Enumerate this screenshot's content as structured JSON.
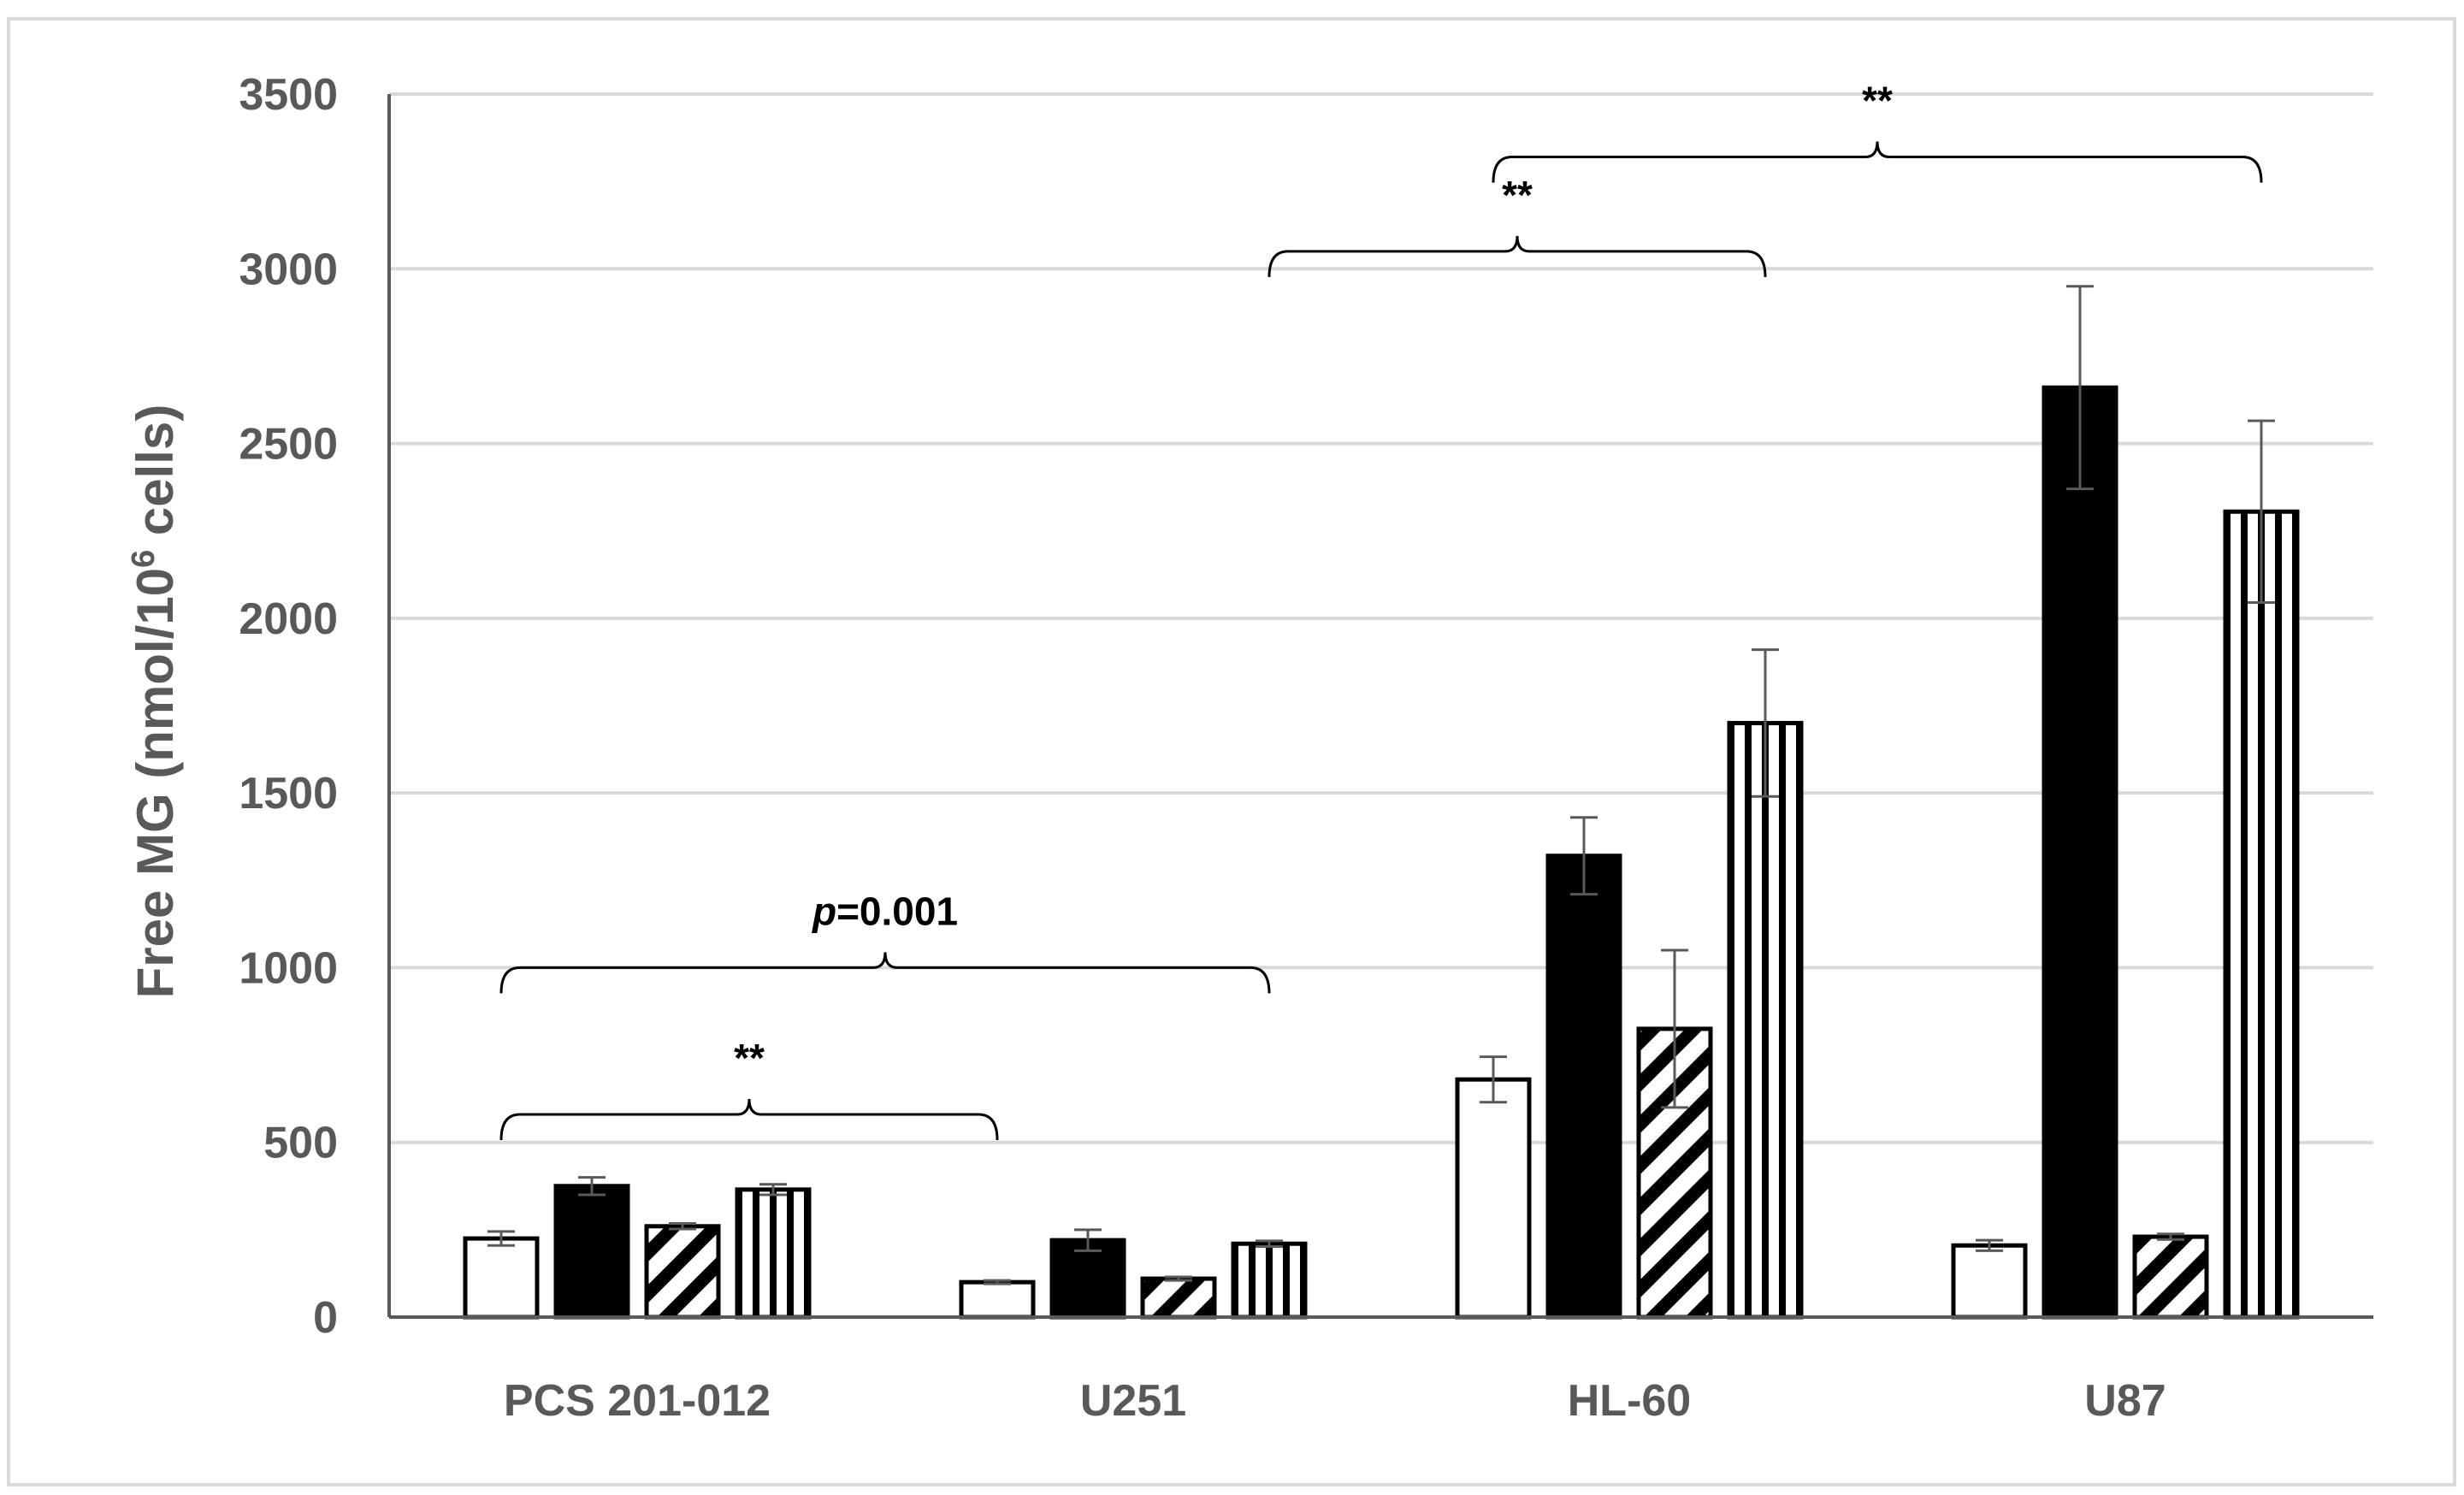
{
  "chart_data": {
    "type": "bar",
    "title": "",
    "xlabel": "",
    "ylabel": "Free MG (nmol/10",
    "ylabel_sup": "6",
    "ylabel_end": " cells)",
    "ylim": [
      0,
      3500
    ],
    "yticks": [
      "0",
      "500",
      "1000",
      "1500",
      "2000",
      "2500",
      "3000",
      "3500"
    ],
    "ytick_values": [
      0,
      500,
      1000,
      1500,
      2000,
      2500,
      3000,
      3500
    ],
    "grid": true,
    "legend": "none",
    "categories": [
      "PCS 201-012",
      "U251",
      "HL-60",
      "U87"
    ],
    "series": [
      {
        "fill": "white",
        "values": [
          225,
          100,
          680,
          205
        ],
        "errors": [
          20,
          5,
          65,
          15
        ]
      },
      {
        "fill": "black",
        "values": [
          375,
          220,
          1320,
          2660
        ],
        "errors": [
          25,
          30,
          110,
          290
        ]
      },
      {
        "fill": "diagonal-hatch",
        "values": [
          260,
          110,
          825,
          230
        ],
        "errors": [
          8,
          5,
          225,
          8
        ]
      },
      {
        "fill": "vertical-stripes",
        "values": [
          365,
          210,
          1700,
          2305
        ],
        "errors": [
          15,
          8,
          210,
          260
        ]
      }
    ],
    "annotations": [
      {
        "text": "**",
        "from": [
          0,
          0
        ],
        "to": [
          1,
          0
        ],
        "level": 580
      },
      {
        "text_prefix": "p",
        "text": "=0.001",
        "from": [
          0,
          0
        ],
        "to": [
          1,
          3
        ],
        "level": 1000
      },
      {
        "text": "**",
        "from": [
          1,
          3
        ],
        "to": [
          2,
          3
        ],
        "level": 3050
      },
      {
        "text": "**",
        "from": [
          2,
          0
        ],
        "to": [
          3,
          3
        ],
        "level": 3320
      }
    ],
    "colors": {
      "axis": "#595959",
      "grid": "#d9d9d9",
      "bar_edge": "#000000",
      "error_bar": "#595959",
      "bracket": "#000000",
      "frame": "#d9d9d9"
    }
  }
}
